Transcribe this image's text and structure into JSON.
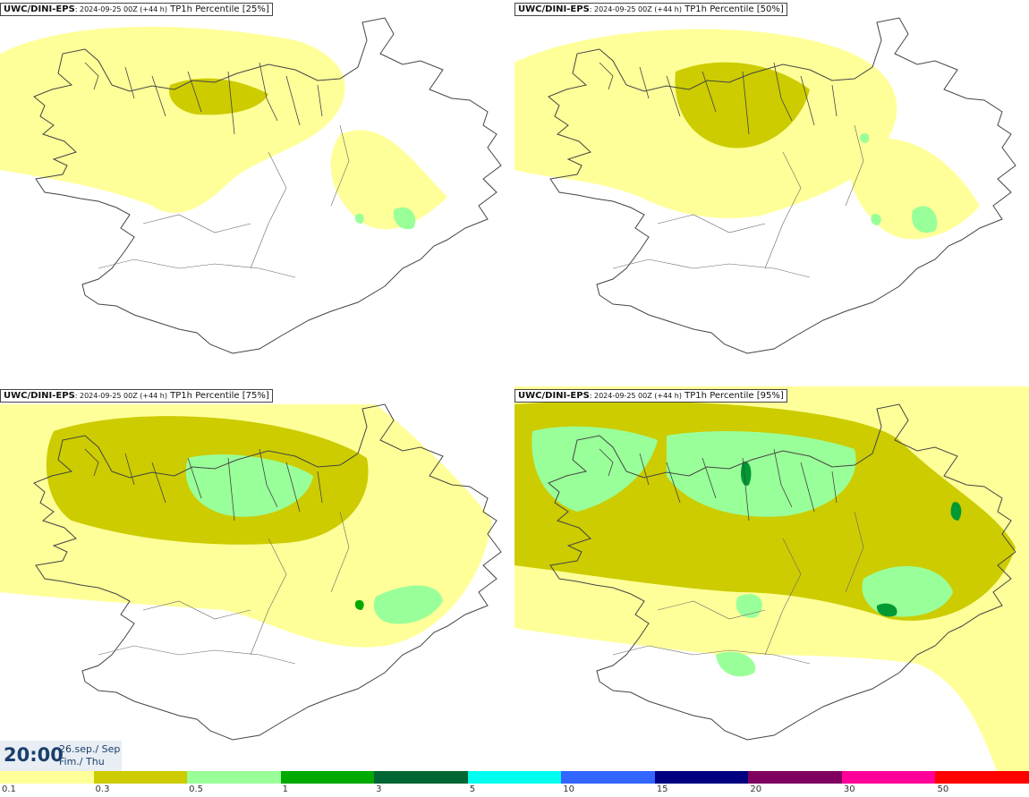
{
  "panels": [
    {
      "model": "UWC/DINI-EPS",
      "run": ": 2024-09-25 00Z (+44 h)",
      "label": "TP1h Percentile [25%]",
      "level": 0
    },
    {
      "model": "UWC/DINI-EPS",
      "run": ": 2024-09-25 00Z (+44 h)",
      "label": "TP1h Percentile [50%]",
      "level": 1
    },
    {
      "model": "UWC/DINI-EPS",
      "run": ": 2024-09-25 00Z (+44 h)",
      "label": "TP1h Percentile [75%]",
      "level": 2
    },
    {
      "model": "UWC/DINI-EPS",
      "run": ": 2024-09-25 00Z (+44 h)",
      "label": "TP1h Percentile [95%]",
      "level": 3
    }
  ],
  "time": {
    "clock": "20:00",
    "date": "26.sep./ Sep",
    "weekday": "Fim./ Thu"
  },
  "legend": {
    "ticks": [
      "0.1",
      "0.3",
      "0.5",
      "1",
      "3",
      "5",
      "10",
      "15",
      "20",
      "30",
      "50"
    ],
    "colors": [
      "#ffff99",
      "#cccc00",
      "#99ff99",
      "#00aa00",
      "#006633",
      "#00ffee",
      "#3366ff",
      "#000080",
      "#800060",
      "#ff0099",
      "#ff0000"
    ]
  },
  "colors": {
    "outline": "#444444",
    "light_yellow": "#ffff99",
    "olive": "#cccc00",
    "light_green": "#99ff99",
    "green": "#009933"
  }
}
